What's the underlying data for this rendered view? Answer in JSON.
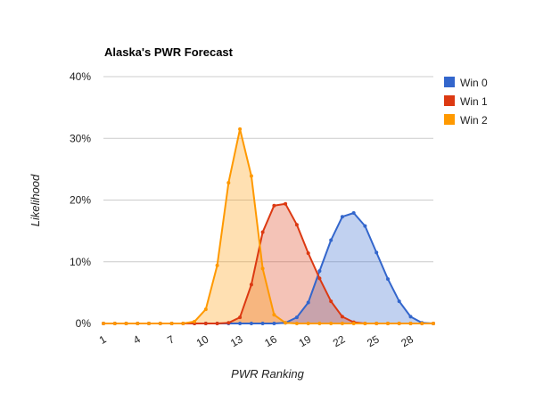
{
  "chart_data": {
    "type": "area",
    "title": "Alaska's PWR Forecast",
    "xlabel": "PWR Ranking",
    "ylabel": "Likelihood",
    "x": [
      1,
      2,
      3,
      4,
      5,
      6,
      7,
      8,
      9,
      10,
      11,
      12,
      13,
      14,
      15,
      16,
      17,
      18,
      19,
      20,
      21,
      22,
      23,
      24,
      25,
      26,
      27,
      28,
      29,
      30
    ],
    "x_tick_labels": [
      "1",
      "4",
      "7",
      "10",
      "13",
      "16",
      "19",
      "22",
      "25",
      "28"
    ],
    "x_tick_values": [
      1,
      4,
      7,
      10,
      13,
      16,
      19,
      22,
      25,
      28
    ],
    "y_tick_labels": [
      "0%",
      "10%",
      "20%",
      "30%",
      "40%"
    ],
    "y_tick_values": [
      0,
      10,
      20,
      30,
      40
    ],
    "ylim": [
      0,
      40
    ],
    "xlim": [
      1,
      30
    ],
    "grid": true,
    "legend_position": "right",
    "series": [
      {
        "name": "Win 0",
        "color": "#3366cc",
        "values": [
          0,
          0,
          0,
          0,
          0,
          0,
          0,
          0,
          0,
          0,
          0,
          0,
          0,
          0,
          0,
          0,
          0.1,
          1,
          3.4,
          8.5,
          13.5,
          17.3,
          17.9,
          15.8,
          11.5,
          7.2,
          3.6,
          1.1,
          0.1,
          0
        ]
      },
      {
        "name": "Win 1",
        "color": "#dc3912",
        "values": [
          0,
          0,
          0,
          0,
          0,
          0,
          0,
          0,
          0,
          0,
          0,
          0.1,
          1,
          6.3,
          14.8,
          19.1,
          19.4,
          16,
          11.4,
          7.3,
          3.6,
          1.1,
          0.2,
          0,
          0,
          0,
          0,
          0,
          0,
          0
        ]
      },
      {
        "name": "Win 2",
        "color": "#ff9900",
        "values": [
          0,
          0,
          0,
          0,
          0,
          0,
          0,
          0,
          0.3,
          2.3,
          9.4,
          22.8,
          31.5,
          23.9,
          8.9,
          1.4,
          0.1,
          0,
          0,
          0,
          0,
          0,
          0,
          0,
          0,
          0,
          0,
          0,
          0,
          0
        ]
      }
    ]
  }
}
